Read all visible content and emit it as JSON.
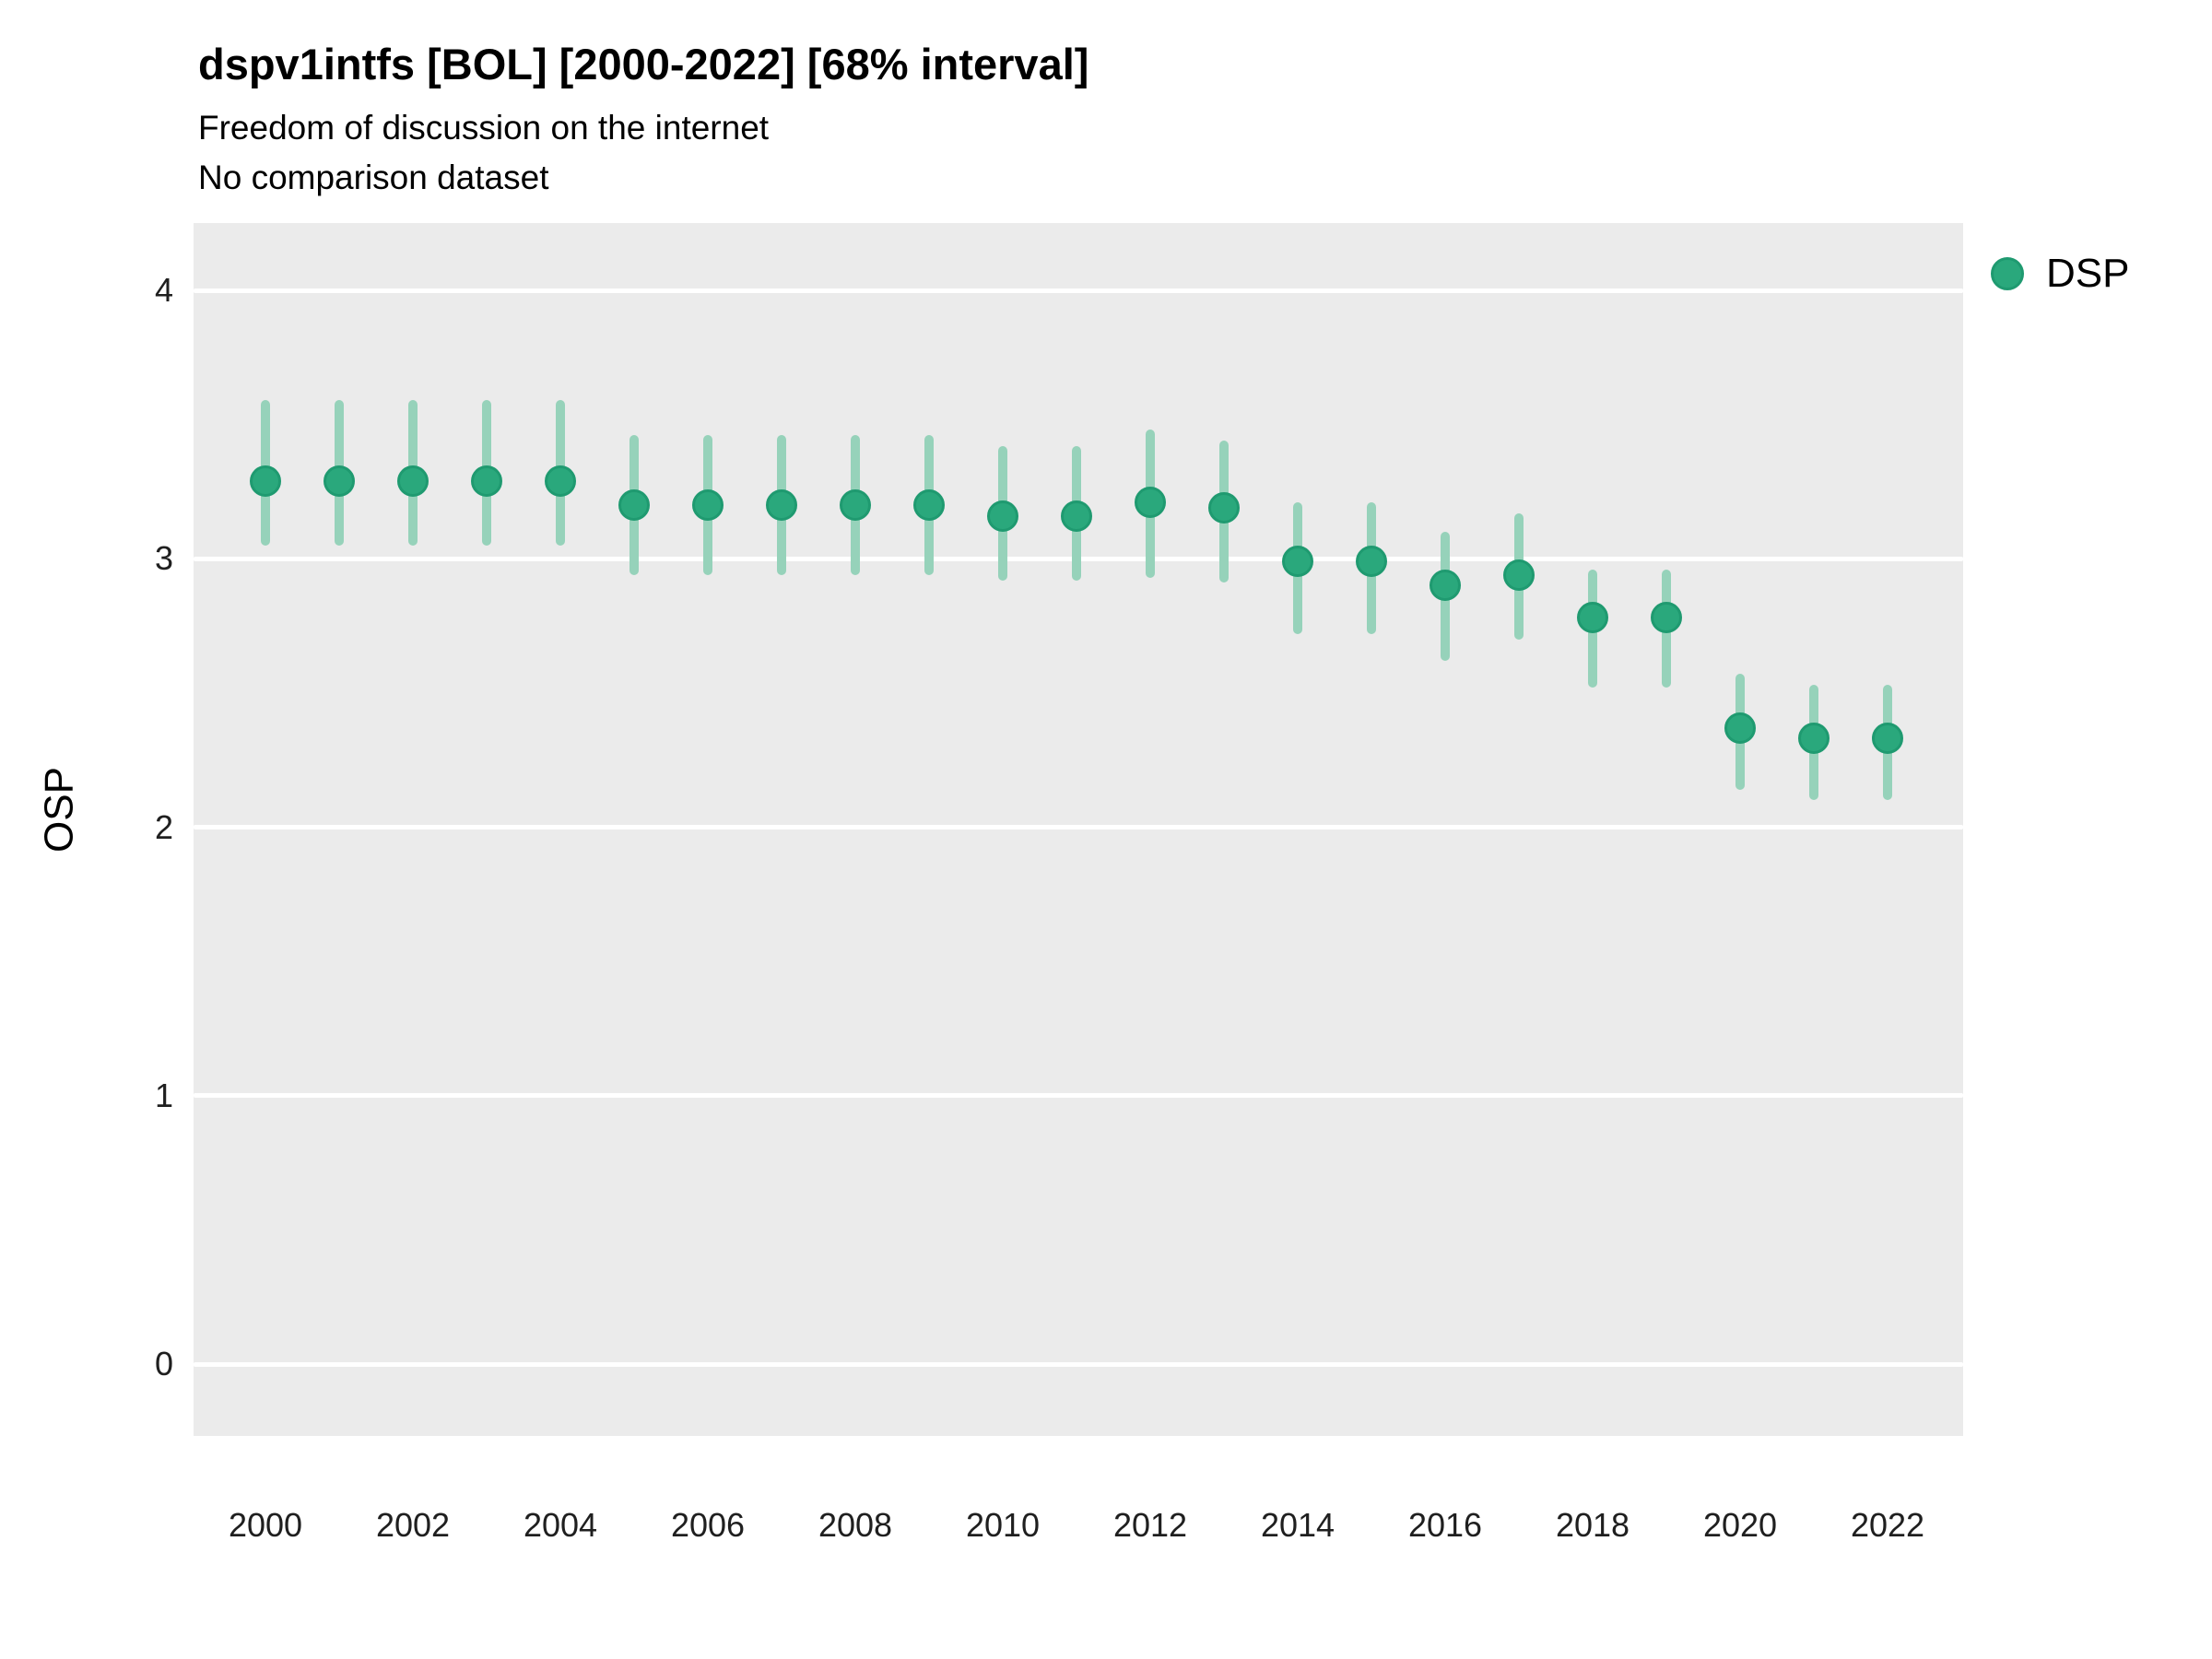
{
  "header": {
    "title": "dspv1intfs [BOL] [2000-2022] [68% interval]",
    "subtitle": "Freedom of discussion on the internet",
    "comparison_note": "No comparison dataset"
  },
  "legend": {
    "label": "DSP",
    "position": "right"
  },
  "colors": {
    "point_fill": "#2aa87c",
    "point_stroke": "#1f9a70",
    "interval_bar": "#96d2ba",
    "panel_background": "#ebebeb",
    "gridline": "#ffffff",
    "title_text": "#000000",
    "tick_text": "#1f1f1f"
  },
  "chart_data": {
    "type": "pointrange",
    "title": "dspv1intfs [BOL] [2000-2022] [68% interval]",
    "subtitle": "Freedom of discussion on the internet",
    "note": "No comparison dataset",
    "xlabel": "",
    "ylabel": "OSP",
    "interval_level": "68%",
    "ylim": [
      -0.3,
      4.25
    ],
    "y_ticks": [
      0,
      1,
      2,
      3,
      4
    ],
    "x_ticks": [
      2000,
      2002,
      2004,
      2006,
      2008,
      2010,
      2012,
      2014,
      2016,
      2018,
      2020,
      2022
    ],
    "grid": "horizontal-major-only",
    "legend_position": "right",
    "series": [
      {
        "name": "DSP",
        "points": [
          {
            "year": 2000,
            "value": 3.29,
            "low": 3.05,
            "high": 3.59
          },
          {
            "year": 2001,
            "value": 3.29,
            "low": 3.05,
            "high": 3.59
          },
          {
            "year": 2002,
            "value": 3.29,
            "low": 3.05,
            "high": 3.59
          },
          {
            "year": 2003,
            "value": 3.29,
            "low": 3.05,
            "high": 3.59
          },
          {
            "year": 2004,
            "value": 3.29,
            "low": 3.05,
            "high": 3.59
          },
          {
            "year": 2005,
            "value": 3.2,
            "low": 2.94,
            "high": 3.46
          },
          {
            "year": 2006,
            "value": 3.2,
            "low": 2.94,
            "high": 3.46
          },
          {
            "year": 2007,
            "value": 3.2,
            "low": 2.94,
            "high": 3.46
          },
          {
            "year": 2008,
            "value": 3.2,
            "low": 2.94,
            "high": 3.46
          },
          {
            "year": 2009,
            "value": 3.2,
            "low": 2.94,
            "high": 3.46
          },
          {
            "year": 2010,
            "value": 3.16,
            "low": 2.92,
            "high": 3.42
          },
          {
            "year": 2011,
            "value": 3.16,
            "low": 2.92,
            "high": 3.42
          },
          {
            "year": 2012,
            "value": 3.21,
            "low": 2.93,
            "high": 3.48
          },
          {
            "year": 2013,
            "value": 3.19,
            "low": 2.91,
            "high": 3.44
          },
          {
            "year": 2014,
            "value": 2.99,
            "low": 2.72,
            "high": 3.21
          },
          {
            "year": 2015,
            "value": 2.99,
            "low": 2.72,
            "high": 3.21
          },
          {
            "year": 2016,
            "value": 2.9,
            "low": 2.62,
            "high": 3.1
          },
          {
            "year": 2017,
            "value": 2.94,
            "low": 2.7,
            "high": 3.17
          },
          {
            "year": 2018,
            "value": 2.78,
            "low": 2.52,
            "high": 2.96
          },
          {
            "year": 2019,
            "value": 2.78,
            "low": 2.52,
            "high": 2.96
          },
          {
            "year": 2020,
            "value": 2.37,
            "low": 2.14,
            "high": 2.57
          },
          {
            "year": 2021,
            "value": 2.33,
            "low": 2.1,
            "high": 2.53
          },
          {
            "year": 2022,
            "value": 2.33,
            "low": 2.1,
            "high": 2.53
          }
        ]
      }
    ]
  }
}
